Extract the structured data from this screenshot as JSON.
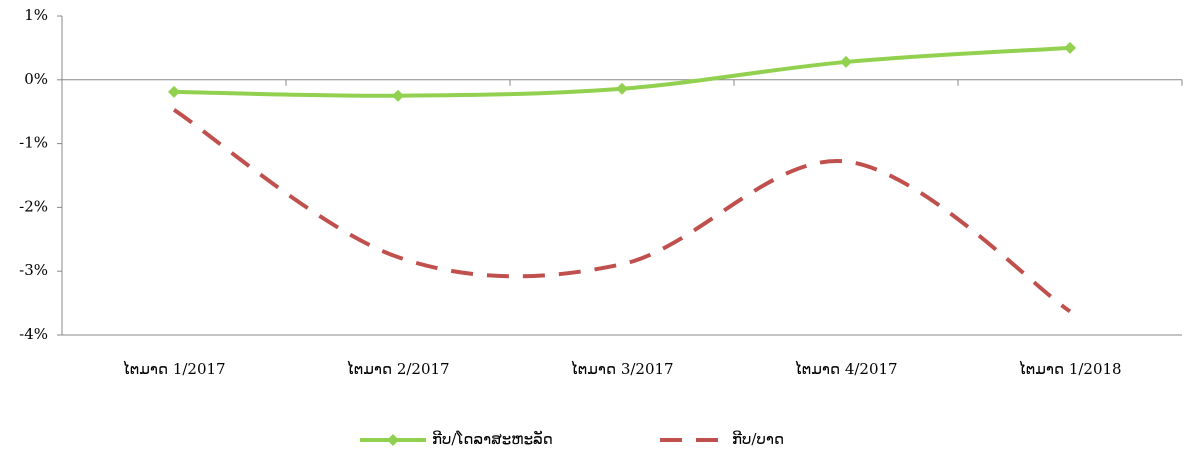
{
  "chart_data": {
    "type": "line",
    "categories": [
      "ໄຕມາດ 1/2017",
      "ໄຕມາດ 2/2017",
      "ໄຕມາດ 3/2017",
      "ໄຕມາດ 4/2017",
      "ໄຕມາດ 1/2018"
    ],
    "series": [
      {
        "name": "ກີບ/ໂດລາສະຫະລັດ",
        "color": "#92d050",
        "values": [
          -0.19,
          -0.25,
          -0.14,
          0.28,
          0.5
        ]
      },
      {
        "name": "ກີບ/ບາດ",
        "color": "#c0504d",
        "values": [
          -0.47,
          -2.78,
          -2.89,
          -1.28,
          -3.63
        ]
      }
    ],
    "ylim": [
      -4,
      1
    ],
    "yticks": [
      {
        "value": -4,
        "label": "-4%"
      },
      {
        "value": -3,
        "label": "-3%"
      },
      {
        "value": -2,
        "label": "-2%"
      },
      {
        "value": -1,
        "label": "-1%"
      },
      {
        "value": 0,
        "label": "0%"
      },
      {
        "value": 1,
        "label": "1%"
      }
    ],
    "grid": false,
    "legend": "bottom"
  }
}
